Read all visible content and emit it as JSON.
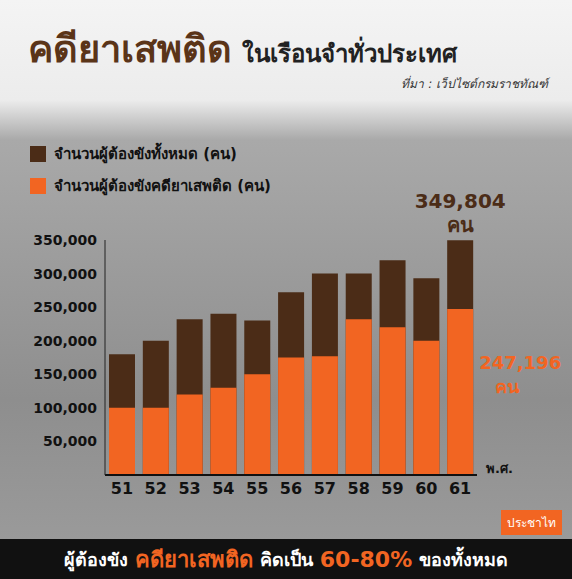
{
  "chart_data": {
    "type": "bar",
    "title": "คดียาเสพติด ในเรือนจำทั่วประเทศ",
    "annotations": [
      "ที่มา : เว็ปไซต์กรมราชทัณฑ์",
      "ประชาไท",
      "ผู้ต้องขัง คดียาเสพติด คิดเป็น 60-80% ของทั้งหมด"
    ],
    "xlabel": "พ.ศ.",
    "categories": [
      "51",
      "52",
      "53",
      "54",
      "55",
      "56",
      "57",
      "58",
      "59",
      "60",
      "61"
    ],
    "series": [
      {
        "name": "จำนวนผู้ต้องขังทั้งหมด (คน)",
        "color": "#4b2c17",
        "values": [
          180000,
          200000,
          232000,
          240000,
          230000,
          272000,
          300000,
          300000,
          320000,
          293000,
          349804
        ],
        "value_labels": [
          null,
          null,
          null,
          null,
          null,
          null,
          null,
          null,
          null,
          null,
          "349,804 คน"
        ]
      },
      {
        "name": "จำนวนผู้ต้องขังคดียาเสพติด (คน)",
        "color": "#f26522",
        "values": [
          100000,
          100000,
          120000,
          130000,
          150000,
          175000,
          177000,
          232000,
          220000,
          200000,
          247196
        ],
        "value_labels": [
          null,
          null,
          null,
          null,
          null,
          null,
          null,
          null,
          null,
          null,
          "247,196 คน"
        ]
      }
    ],
    "ylim": [
      0,
      350000
    ],
    "yticks": [
      {
        "value": 50000,
        "label": "50,000"
      },
      {
        "value": 100000,
        "label": "100,000"
      },
      {
        "value": 150000,
        "label": "150,000"
      },
      {
        "value": 200000,
        "label": "200,000"
      },
      {
        "value": 250000,
        "label": "250,000"
      },
      {
        "value": 300000,
        "label": "300,000"
      },
      {
        "value": 350000,
        "label": "350,000"
      }
    ],
    "legend": "upper left",
    "grid": false
  }
}
